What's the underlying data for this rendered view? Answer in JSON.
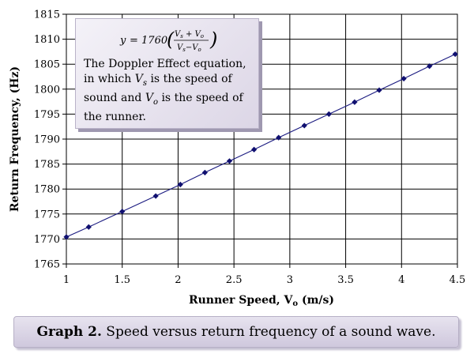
{
  "chart_data": {
    "type": "line",
    "title": "",
    "xlabel": "Runner Speed, V",
    "xlabel_subscript": "o",
    "xlabel_unit": " (m/s)",
    "ylabel": "Return Frequency, (Hz)",
    "xlim": [
      1,
      4.5
    ],
    "ylim": [
      1765,
      1815
    ],
    "x_ticks": [
      1,
      1.5,
      2,
      2.5,
      3,
      3.5,
      4,
      4.5
    ],
    "x_tick_labels": [
      "1",
      "1.5",
      "2",
      "2.5",
      "3",
      "3.5",
      "4",
      "4.5"
    ],
    "y_ticks": [
      1765,
      1770,
      1775,
      1780,
      1785,
      1790,
      1795,
      1800,
      1805,
      1810,
      1815
    ],
    "y_tick_labels": [
      "1765",
      "1770",
      "1775",
      "1780",
      "1785",
      "1790",
      "1795",
      "1800",
      "1805",
      "1810",
      "1815"
    ],
    "grid": true,
    "legend": "none",
    "marker": "diamond",
    "series_color": "#1a1a80",
    "x": [
      1.0,
      1.2,
      1.5,
      1.8,
      2.02,
      2.24,
      2.46,
      2.68,
      2.9,
      3.13,
      3.35,
      3.58,
      3.8,
      4.02,
      4.25,
      4.48
    ],
    "y": [
      1770.4,
      1772.4,
      1775.5,
      1778.6,
      1780.9,
      1783.3,
      1785.6,
      1787.9,
      1790.3,
      1792.7,
      1795.0,
      1797.4,
      1799.8,
      1802.1,
      1804.6,
      1807.0
    ],
    "annotation": {
      "equation": "y = 1760 (Vs + Vo / Vs − Vo)",
      "text_parts": [
        "The Doppler Effect equation, in which ",
        "V",
        "s",
        " is the speed of sound and ",
        "V",
        "o",
        " is the speed of the runner."
      ]
    }
  },
  "caption": {
    "label": "Graph 2.",
    "text": " Speed versus return frequency of a sound wave."
  }
}
